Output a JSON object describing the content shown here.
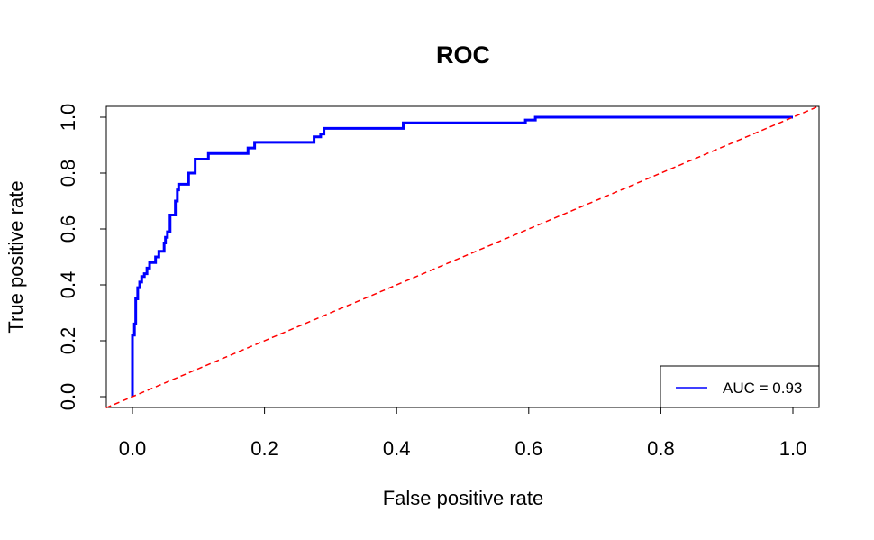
{
  "chart_data": {
    "type": "line",
    "title": "ROC",
    "xlabel": "False positive rate",
    "ylabel": "True positive rate",
    "xlim": [
      0,
      1
    ],
    "ylim": [
      0,
      1
    ],
    "x_ticks": [
      "0.0",
      "0.2",
      "0.4",
      "0.6",
      "0.8",
      "1.0"
    ],
    "y_ticks": [
      "0.0",
      "0.2",
      "0.4",
      "0.6",
      "0.8",
      "1.0"
    ],
    "grid": false,
    "legend": {
      "position": "bottom-right",
      "entries": [
        {
          "label": "AUC = 0.93",
          "color": "#0000ff"
        }
      ]
    },
    "series": [
      {
        "name": "AUC = 0.93",
        "color": "#0000ff",
        "style": "solid",
        "points": [
          [
            0.0,
            0.0
          ],
          [
            0.0,
            0.22
          ],
          [
            0.003,
            0.22
          ],
          [
            0.003,
            0.26
          ],
          [
            0.005,
            0.26
          ],
          [
            0.005,
            0.35
          ],
          [
            0.008,
            0.35
          ],
          [
            0.008,
            0.39
          ],
          [
            0.011,
            0.39
          ],
          [
            0.011,
            0.41
          ],
          [
            0.014,
            0.41
          ],
          [
            0.014,
            0.43
          ],
          [
            0.018,
            0.43
          ],
          [
            0.018,
            0.44
          ],
          [
            0.022,
            0.44
          ],
          [
            0.022,
            0.46
          ],
          [
            0.026,
            0.46
          ],
          [
            0.026,
            0.48
          ],
          [
            0.03,
            0.48
          ],
          [
            0.03,
            0.48
          ],
          [
            0.035,
            0.48
          ],
          [
            0.035,
            0.5
          ],
          [
            0.04,
            0.5
          ],
          [
            0.04,
            0.52
          ],
          [
            0.044,
            0.52
          ],
          [
            0.044,
            0.52
          ],
          [
            0.048,
            0.52
          ],
          [
            0.048,
            0.55
          ],
          [
            0.05,
            0.55
          ],
          [
            0.05,
            0.57
          ],
          [
            0.053,
            0.57
          ],
          [
            0.053,
            0.59
          ],
          [
            0.057,
            0.59
          ],
          [
            0.057,
            0.65
          ],
          [
            0.065,
            0.65
          ],
          [
            0.065,
            0.7
          ],
          [
            0.068,
            0.7
          ],
          [
            0.068,
            0.74
          ],
          [
            0.07,
            0.74
          ],
          [
            0.07,
            0.76
          ],
          [
            0.078,
            0.76
          ],
          [
            0.078,
            0.76
          ],
          [
            0.085,
            0.76
          ],
          [
            0.085,
            0.8
          ],
          [
            0.095,
            0.8
          ],
          [
            0.095,
            0.85
          ],
          [
            0.115,
            0.85
          ],
          [
            0.115,
            0.87
          ],
          [
            0.175,
            0.87
          ],
          [
            0.175,
            0.89
          ],
          [
            0.185,
            0.89
          ],
          [
            0.185,
            0.91
          ],
          [
            0.275,
            0.91
          ],
          [
            0.275,
            0.93
          ],
          [
            0.285,
            0.93
          ],
          [
            0.285,
            0.94
          ],
          [
            0.29,
            0.94
          ],
          [
            0.29,
            0.96
          ],
          [
            0.41,
            0.96
          ],
          [
            0.41,
            0.98
          ],
          [
            0.595,
            0.98
          ],
          [
            0.595,
            0.99
          ],
          [
            0.61,
            0.99
          ],
          [
            0.61,
            1.0
          ],
          [
            1.0,
            1.0
          ]
        ]
      },
      {
        "name": "",
        "color": "#ff0000",
        "style": "dashed",
        "points": [
          [
            -0.04,
            -0.04
          ],
          [
            1.04,
            1.04
          ]
        ]
      }
    ]
  }
}
